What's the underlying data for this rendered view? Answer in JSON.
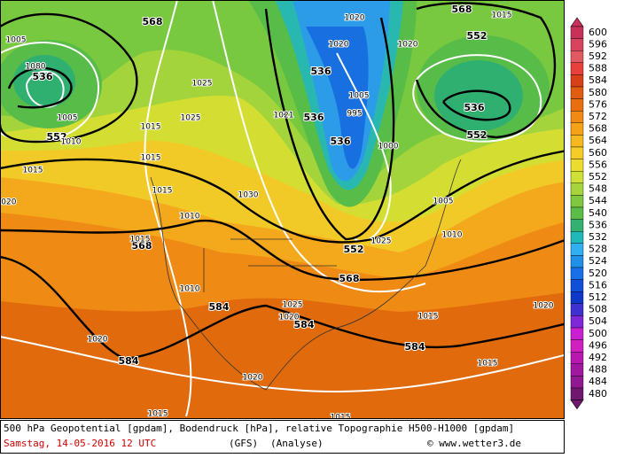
{
  "map": {
    "contour_labels": [
      "568",
      "568",
      "536",
      "552",
      "536",
      "536",
      "536",
      "552",
      "536",
      "552",
      "568",
      "552",
      "568",
      "584",
      "584",
      "584",
      "584"
    ],
    "isobar_labels": [
      "1005",
      "1080",
      "1005",
      "1010",
      "1015",
      "1015",
      "1015",
      "1025",
      "1025",
      "1015",
      "1030",
      "1010",
      "1015",
      "1020",
      "1010",
      "1020",
      "1025",
      "1020",
      "1015",
      "1020",
      "1015",
      "1020",
      "1015",
      "1015",
      "1020",
      "1020",
      "1020",
      "1015",
      "995",
      "1005",
      "1000",
      "1005",
      "1010",
      "1025",
      "1021"
    ]
  },
  "legend": {
    "values": [
      600,
      596,
      592,
      588,
      584,
      580,
      576,
      572,
      568,
      564,
      560,
      556,
      552,
      548,
      544,
      540,
      536,
      532,
      528,
      524,
      520,
      516,
      512,
      508,
      504,
      500,
      496,
      492,
      488,
      484,
      480
    ],
    "colors": [
      "#c8325a",
      "#d8445e",
      "#e05a62",
      "#e8403a",
      "#d8401a",
      "#e05c10",
      "#e86e10",
      "#f08a14",
      "#f5a21a",
      "#f5b820",
      "#f5cc28",
      "#ecdc30",
      "#cfe038",
      "#a6d43c",
      "#80c840",
      "#5cbc48",
      "#34b070",
      "#20b8b8",
      "#30b0f0",
      "#2090e8",
      "#1870e8",
      "#1050d8",
      "#1038c8",
      "#4030d0",
      "#8028d8",
      "#c820d0",
      "#d020c0",
      "#b818b0",
      "#a018a0",
      "#901890",
      "#701870"
    ]
  },
  "caption": {
    "description": "500 hPa Geopotential [gpdam], Bodendruck [hPa], relative Topographie H500-H1000 [gpdam]",
    "date_time": "Samstag, 14-05-2016  12 UTC",
    "model": "(GFS)",
    "run": "(Analyse)",
    "credit": "© www.wetter3.de"
  }
}
